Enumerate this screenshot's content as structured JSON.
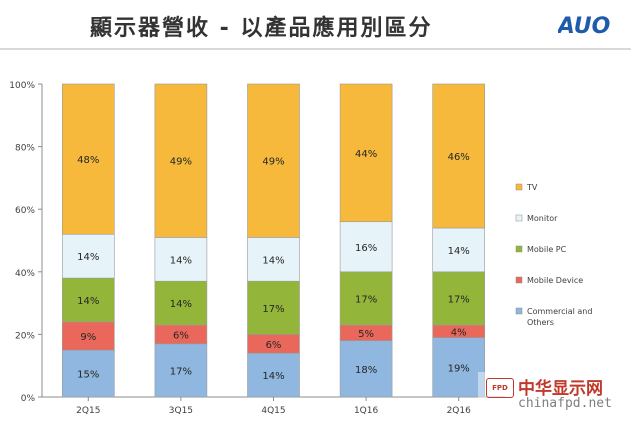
{
  "header": {
    "title": "顯示器營收 - 以產品應用別區分",
    "logo_text": "AUO"
  },
  "watermark": {
    "badge": "FPD",
    "name": "中华显示网",
    "url": "chinafpd.net"
  },
  "colors": {
    "tv": "#f6b93b",
    "monitor": "#e6f3f8",
    "mobile_pc": "#93b53a",
    "mobile_device": "#e9685b",
    "commercial": "#8fb7df",
    "logo": "#1f5bab"
  },
  "chart_data": {
    "type": "bar",
    "stacked": true,
    "categories": [
      "2Q15",
      "3Q15",
      "4Q15",
      "1Q16",
      "2Q16"
    ],
    "series": [
      {
        "name": "Commercial and Others",
        "key": "commercial",
        "values": [
          15,
          17,
          14,
          18,
          19
        ],
        "labels": [
          "15%",
          "17%",
          "14%",
          "18%",
          "19%"
        ]
      },
      {
        "name": "Mobile Device",
        "key": "mobile_device",
        "values": [
          9,
          6,
          6,
          5,
          4
        ],
        "labels": [
          "9%",
          "6%",
          "6%",
          "5%",
          "4%"
        ]
      },
      {
        "name": "Mobile PC",
        "key": "mobile_pc",
        "values": [
          14,
          14,
          17,
          17,
          17
        ],
        "labels": [
          "14%",
          "14%",
          "17%",
          "17%",
          "17%"
        ]
      },
      {
        "name": "Monitor",
        "key": "monitor",
        "values": [
          14,
          14,
          14,
          16,
          14
        ],
        "labels": [
          "14%",
          "14%",
          "14%",
          "16%",
          "14%"
        ]
      },
      {
        "name": "TV",
        "key": "tv",
        "values": [
          48,
          49,
          49,
          44,
          46
        ],
        "labels": [
          "48%",
          "49%",
          "49%",
          "44%",
          "46%"
        ]
      }
    ],
    "legend_order": [
      "TV",
      "Monitor",
      "Mobile PC",
      "Mobile Device",
      "Commercial and Others"
    ],
    "yticks": [
      "0%",
      "20%",
      "40%",
      "60%",
      "80%",
      "100%"
    ],
    "ylim": [
      0,
      100
    ],
    "legend": "right"
  }
}
